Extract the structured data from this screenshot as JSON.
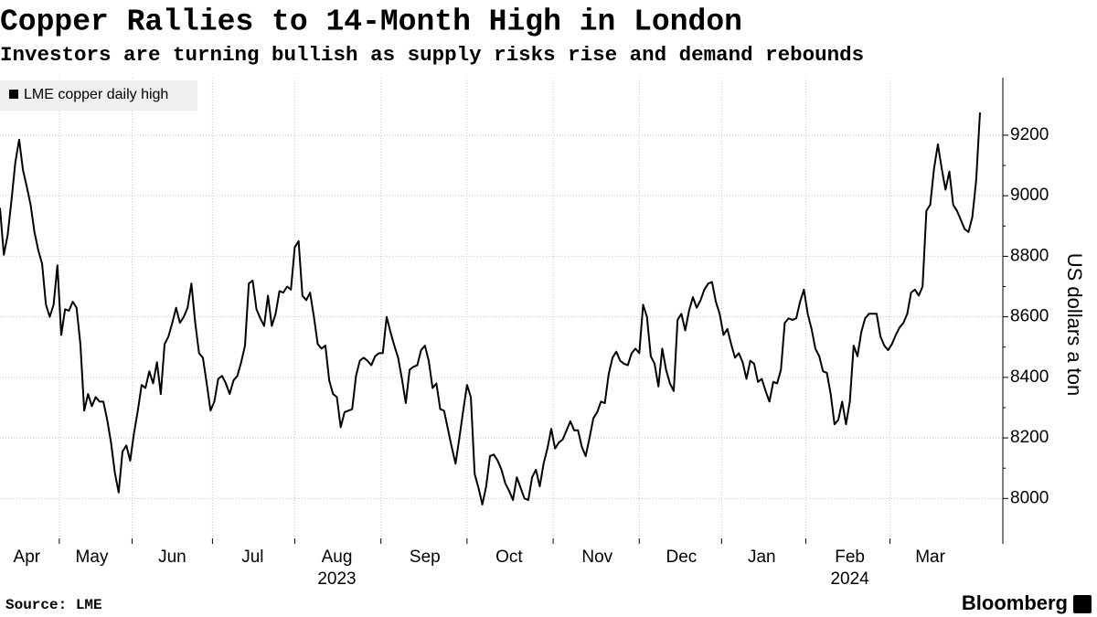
{
  "chart_data": {
    "type": "line",
    "title": "Copper Rallies to 14-Month High in London",
    "subtitle": "Investors are turning bullish as supply risks rise and demand rebounds",
    "y_label": "US dollars a ton",
    "source": "Source: LME",
    "credit": "Bloomberg",
    "legend": "top-left",
    "grid": true,
    "ylim": [
      7850,
      9390
    ],
    "yticks": [
      8000,
      8200,
      8400,
      8600,
      8800,
      9000,
      9200
    ],
    "year_labels": [
      {
        "label": "2023",
        "month": "Aug"
      },
      {
        "label": "2024",
        "month": "Feb"
      }
    ],
    "categories": [
      null,
      null,
      null,
      null,
      null,
      null,
      null,
      "Apr",
      null,
      null,
      null,
      null,
      null,
      null,
      null,
      null,
      null,
      null,
      null,
      null,
      null,
      null,
      null,
      null,
      "May",
      null,
      null,
      null,
      null,
      null,
      null,
      null,
      null,
      null,
      null,
      null,
      null,
      null,
      null,
      null,
      null,
      null,
      null,
      null,
      null,
      "Jun",
      null,
      null,
      null,
      null,
      null,
      null,
      null,
      null,
      null,
      null,
      null,
      null,
      null,
      null,
      null,
      null,
      null,
      null,
      null,
      null,
      "Jul",
      null,
      null,
      null,
      null,
      null,
      null,
      null,
      null,
      null,
      null,
      null,
      null,
      null,
      null,
      null,
      null,
      null,
      null,
      null,
      null,
      null,
      "Aug",
      null,
      null,
      null,
      null,
      null,
      null,
      null,
      null,
      null,
      null,
      null,
      null,
      null,
      null,
      null,
      null,
      null,
      null,
      null,
      null,
      null,
      null,
      "Sep",
      null,
      null,
      null,
      null,
      null,
      null,
      null,
      null,
      null,
      null,
      null,
      null,
      null,
      null,
      null,
      null,
      null,
      null,
      null,
      null,
      null,
      "Oct",
      null,
      null,
      null,
      null,
      null,
      null,
      null,
      null,
      null,
      null,
      null,
      null,
      null,
      null,
      null,
      null,
      null,
      null,
      null,
      null,
      null,
      null,
      "Nov",
      null,
      null,
      null,
      null,
      null,
      null,
      null,
      null,
      null,
      null,
      null,
      null,
      null,
      null,
      null,
      null,
      null,
      null,
      null,
      null,
      null,
      "Dec",
      null,
      null,
      null,
      null,
      null,
      null,
      null,
      null,
      null,
      null,
      null,
      null,
      null,
      null,
      null,
      null,
      null,
      null,
      null,
      null,
      "Jan",
      null,
      null,
      null,
      null,
      null,
      null,
      null,
      null,
      null,
      null,
      null,
      null,
      null,
      null,
      null,
      null,
      null,
      null,
      null,
      null,
      null,
      null,
      "Feb",
      null,
      null,
      null,
      null,
      null,
      null,
      null,
      null,
      null,
      null,
      null,
      null,
      null,
      null,
      null,
      null,
      null,
      null,
      null,
      null,
      "Mar",
      null,
      null,
      null,
      null,
      null,
      null,
      null,
      null,
      null,
      null,
      null,
      null,
      null
    ],
    "series": [
      {
        "name": "LME copper daily high",
        "color": "#000000",
        "values": [
          8960,
          8805,
          8870,
          8985,
          9110,
          9185,
          9085,
          9030,
          8970,
          8880,
          8820,
          8775,
          8640,
          8600,
          8640,
          8770,
          8540,
          8625,
          8620,
          8650,
          8630,
          8510,
          8290,
          8345,
          8305,
          8335,
          8320,
          8320,
          8260,
          8185,
          8085,
          8020,
          8155,
          8175,
          8125,
          8215,
          8290,
          8375,
          8365,
          8420,
          8380,
          8450,
          8345,
          8510,
          8535,
          8580,
          8630,
          8580,
          8600,
          8630,
          8710,
          8580,
          8480,
          8465,
          8380,
          8290,
          8320,
          8395,
          8405,
          8380,
          8345,
          8390,
          8405,
          8450,
          8505,
          8710,
          8720,
          8625,
          8595,
          8570,
          8670,
          8570,
          8610,
          8685,
          8680,
          8700,
          8690,
          8830,
          8850,
          8670,
          8655,
          8680,
          8600,
          8510,
          8495,
          8505,
          8390,
          8345,
          8335,
          8235,
          8285,
          8290,
          8295,
          8405,
          8455,
          8465,
          8455,
          8440,
          8470,
          8480,
          8480,
          8600,
          8550,
          8505,
          8465,
          8395,
          8315,
          8425,
          8435,
          8440,
          8490,
          8505,
          8455,
          8365,
          8380,
          8295,
          8290,
          8230,
          8170,
          8115,
          8200,
          8290,
          8375,
          8335,
          8080,
          8035,
          7980,
          8040,
          8140,
          8145,
          8125,
          8095,
          8050,
          8025,
          7995,
          8070,
          8035,
          8000,
          7995,
          8070,
          8095,
          8040,
          8115,
          8165,
          8230,
          8165,
          8185,
          8195,
          8225,
          8255,
          8225,
          8225,
          8170,
          8140,
          8200,
          8265,
          8285,
          8320,
          8315,
          8410,
          8465,
          8485,
          8455,
          8445,
          8440,
          8480,
          8495,
          8480,
          8640,
          8600,
          8470,
          8445,
          8370,
          8495,
          8425,
          8380,
          8355,
          8590,
          8610,
          8555,
          8620,
          8665,
          8630,
          8655,
          8690,
          8710,
          8715,
          8650,
          8610,
          8540,
          8560,
          8510,
          8465,
          8480,
          8450,
          8395,
          8455,
          8445,
          8385,
          8395,
          8355,
          8320,
          8385,
          8380,
          8425,
          8580,
          8595,
          8590,
          8595,
          8650,
          8690,
          8610,
          8560,
          8495,
          8470,
          8420,
          8415,
          8345,
          8245,
          8260,
          8320,
          8245,
          8320,
          8505,
          8470,
          8550,
          8595,
          8610,
          8610,
          8610,
          8535,
          8505,
          8490,
          8510,
          8540,
          8565,
          8580,
          8610,
          8680,
          8690,
          8670,
          8700,
          8950,
          8970,
          9090,
          9170,
          9090,
          9020,
          9080,
          8970,
          8950,
          8920,
          8890,
          8880,
          8930,
          9050,
          9275
        ]
      }
    ]
  }
}
